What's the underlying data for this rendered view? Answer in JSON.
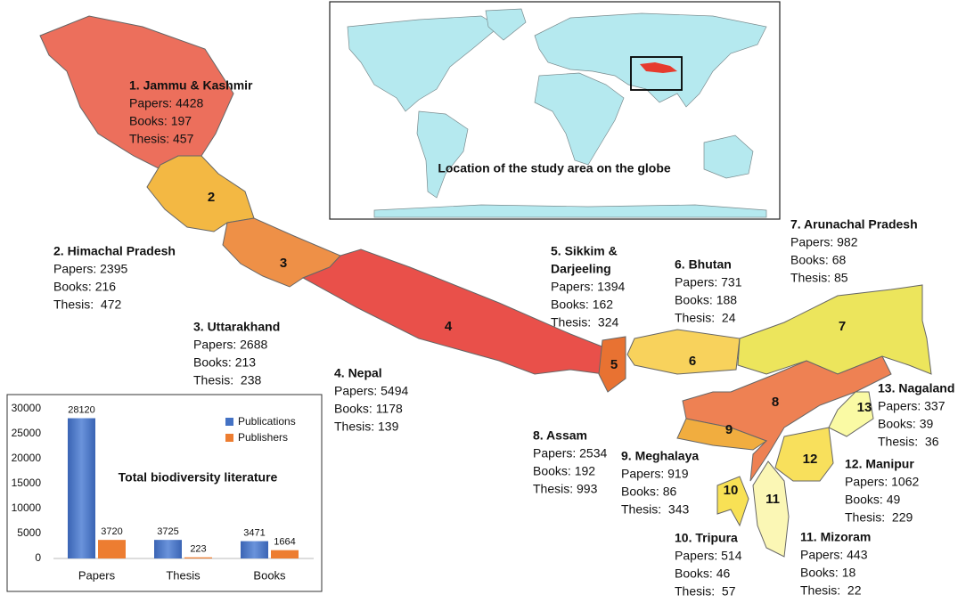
{
  "inset_caption": "Location of the study area on the globe",
  "regions": [
    {
      "number": null,
      "title_lines": [
        "1. Jammu & Kashmir"
      ],
      "lines": [
        "Papers: 4428",
        "Books: 197",
        "Thesis: 457"
      ]
    },
    {
      "number": "2",
      "title_lines": [
        "2. Himachal Pradesh"
      ],
      "lines": [
        "Papers: 2395",
        "Books: 216",
        "Thesis:  472"
      ]
    },
    {
      "number": "3",
      "title_lines": [
        "3. Uttarakhand"
      ],
      "lines": [
        "Papers: 2688",
        "Books: 213",
        "Thesis:  238"
      ]
    },
    {
      "number": "4",
      "title_lines": [
        "4. Nepal"
      ],
      "lines": [
        "Papers: 5494",
        "Books: 1178",
        "Thesis: 139"
      ]
    },
    {
      "number": "5",
      "title_lines": [
        "5. Sikkim &",
        "Darjeeling"
      ],
      "lines": [
        "Papers: 1394",
        "Books: 162",
        "Thesis:  324"
      ]
    },
    {
      "number": "6",
      "title_lines": [
        "6. Bhutan"
      ],
      "lines": [
        "Papers: 731",
        "Books: 188",
        "Thesis:  24"
      ]
    },
    {
      "number": "7",
      "title_lines": [
        "7. Arunachal Pradesh"
      ],
      "lines": [
        "Papers: 982",
        "Books: 68",
        "Thesis: 85"
      ]
    },
    {
      "number": "8",
      "title_lines": [
        "8. Assam"
      ],
      "lines": [
        "Papers: 2534",
        "Books: 192",
        "Thesis: 993"
      ]
    },
    {
      "number": "9",
      "title_lines": [
        "9. Meghalaya"
      ],
      "lines": [
        "Papers: 919",
        "Books: 86",
        "Thesis:  343"
      ]
    },
    {
      "number": "10",
      "title_lines": [
        "10. Tripura"
      ],
      "lines": [
        "Papers: 514",
        "Books: 46",
        "Thesis:  57"
      ]
    },
    {
      "number": "11",
      "title_lines": [
        "11. Mizoram"
      ],
      "lines": [
        "Papers: 443",
        "Books: 18",
        "Thesis:  22"
      ]
    },
    {
      "number": "12",
      "title_lines": [
        "12. Manipur"
      ],
      "lines": [
        "Papers: 1062",
        "Books: 49",
        "Thesis:  229"
      ]
    },
    {
      "number": "13",
      "title_lines": [
        "13. Nagaland"
      ],
      "lines": [
        "Papers: 337",
        "Books: 39",
        "Thesis:  36"
      ]
    }
  ],
  "chart_data": {
    "type": "bar",
    "title": "Total biodiversity literature",
    "categories": [
      "Papers",
      "Thesis",
      "Books"
    ],
    "series": [
      {
        "name": "Publications",
        "color": "#4472c4",
        "values": [
          28120,
          3725,
          3471
        ]
      },
      {
        "name": "Publishers",
        "color": "#ed7d31",
        "values": [
          3720,
          223,
          1664
        ]
      }
    ],
    "ylim": [
      0,
      30000
    ],
    "yticks": [
      0,
      5000,
      10000,
      15000,
      20000,
      25000,
      30000
    ],
    "grid": false,
    "legend": "upper right"
  }
}
